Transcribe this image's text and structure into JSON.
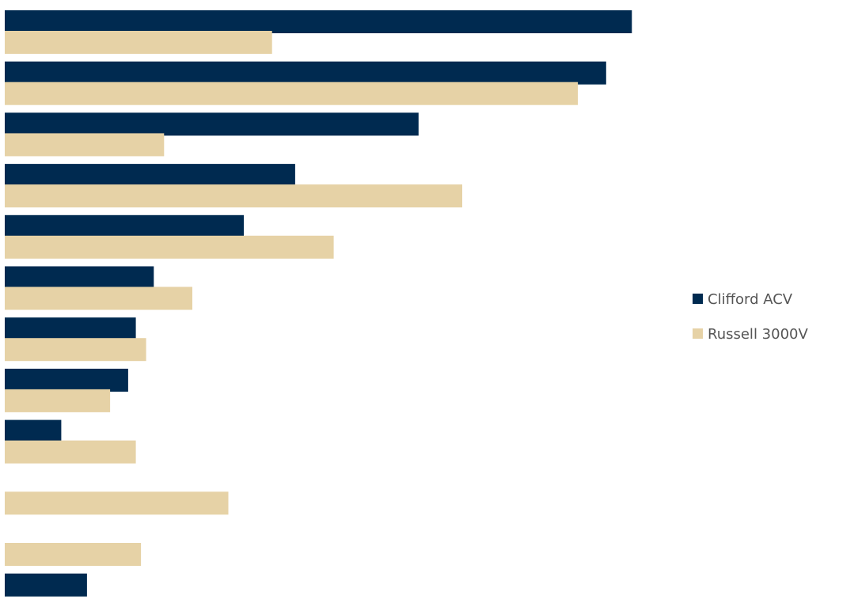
{
  "chart_data": {
    "type": "bar",
    "orientation": "horizontal",
    "categories": [
      "",
      "",
      "",
      "",
      "",
      "",
      "",
      "",
      "",
      "",
      "",
      ""
    ],
    "series": [
      {
        "name": "Clifford ACV",
        "color": "#002a50",
        "values": [
          24.4,
          23.4,
          16.1,
          11.3,
          9.3,
          5.8,
          5.1,
          4.8,
          2.2,
          0,
          0,
          3.2
        ]
      },
      {
        "name": "Russell 3000V",
        "color": "#e6d2a6",
        "values": [
          10.4,
          22.3,
          6.2,
          17.8,
          12.8,
          7.3,
          5.5,
          4.1,
          5.1,
          8.7,
          5.3,
          0
        ]
      }
    ],
    "xlim": [
      0,
      33.2
    ],
    "grid": false,
    "legend_position": "right"
  }
}
